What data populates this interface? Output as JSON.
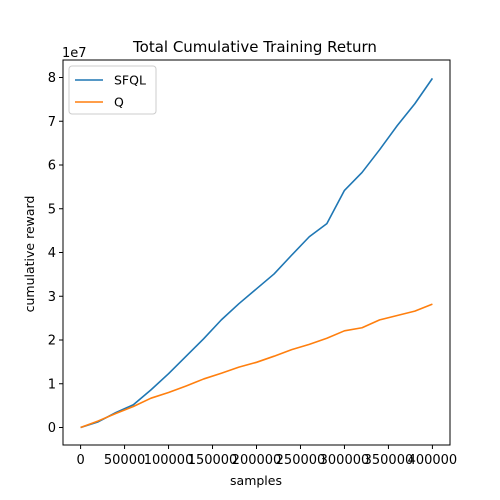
{
  "chart_data": {
    "type": "line",
    "title": "Total Cumulative Training Return",
    "xlabel": "samples",
    "ylabel": "cumulative reward",
    "y_offset_label": "1e7",
    "xlim": [
      -20000,
      420000
    ],
    "ylim": [
      -4000000,
      84000000
    ],
    "x_ticks": [
      0,
      50000,
      100000,
      150000,
      200000,
      250000,
      300000,
      350000,
      400000
    ],
    "x_tick_labels": [
      "0",
      "50000",
      "100000",
      "150000",
      "200000",
      "250000",
      "300000",
      "350000",
      "400000"
    ],
    "y_ticks": [
      0,
      10000000,
      20000000,
      30000000,
      40000000,
      50000000,
      60000000,
      70000000,
      80000000
    ],
    "y_tick_labels": [
      "0",
      "1",
      "2",
      "3",
      "4",
      "5",
      "6",
      "7",
      "8"
    ],
    "grid": false,
    "legend_position": "top-left",
    "x": [
      0,
      20000,
      40000,
      60000,
      80000,
      100000,
      120000,
      140000,
      160000,
      180000,
      200000,
      220000,
      240000,
      260000,
      280000,
      300000,
      320000,
      340000,
      360000,
      380000,
      400000
    ],
    "series": [
      {
        "name": "SFQL",
        "color": "#1f77b4",
        "values": [
          0,
          1300000,
          3400000,
          5200000,
          8600000,
          12300000,
          16300000,
          20300000,
          24600000,
          28300000,
          31700000,
          35100000,
          39400000,
          43600000,
          46600000,
          54200000,
          58300000,
          63500000,
          69000000,
          74000000,
          79800000
        ]
      },
      {
        "name": "Q",
        "color": "#ff7f0e",
        "values": [
          0,
          1500000,
          3200000,
          4800000,
          6700000,
          8000000,
          9500000,
          11100000,
          12400000,
          13800000,
          14900000,
          16300000,
          17800000,
          19000000,
          20400000,
          22100000,
          22800000,
          24600000,
          25600000,
          26600000,
          28200000
        ]
      }
    ]
  }
}
